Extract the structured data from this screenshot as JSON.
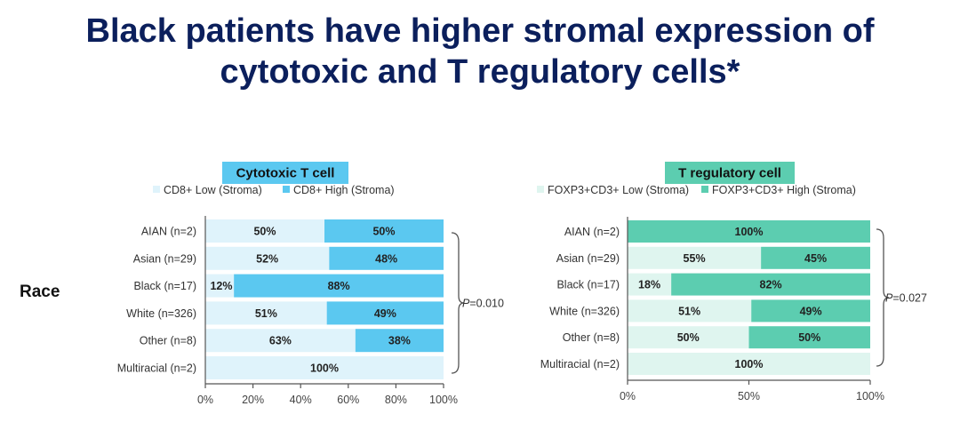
{
  "title_line1": "Black patients have higher stromal expression of",
  "title_line2": "cytotoxic and T regulatory cells*",
  "y_group_label": "Race",
  "chart_data": [
    {
      "type": "bar",
      "orientation": "horizontal-stacked",
      "title": "Cytotoxic T cell",
      "title_color": "#5bc8f0",
      "categories": [
        "AIAN (n=2)",
        "Asian (n=29)",
        "Black (n=17)",
        "White (n=326)",
        "Other (n=8)",
        "Multiracial (n=2)"
      ],
      "series": [
        {
          "name": "CD8+ Low (Stroma)",
          "color": "#dff3fb",
          "values": [
            50,
            52,
            12,
            51,
            63,
            100
          ],
          "labels": [
            "50%",
            "52%",
            "12%",
            "51%",
            "63%",
            "100%"
          ]
        },
        {
          "name": "CD8+ High (Stroma)",
          "color": "#5bc8f0",
          "values": [
            50,
            48,
            88,
            49,
            38,
            0
          ],
          "labels": [
            "50%",
            "48%",
            "88%",
            "49%",
            "38%",
            ""
          ]
        }
      ],
      "xticks": [
        "0%",
        "20%",
        "40%",
        "60%",
        "80%",
        "100%"
      ],
      "xtick_values": [
        0,
        20,
        40,
        60,
        80,
        100
      ],
      "xlim": [
        0,
        100
      ],
      "legend": "top",
      "annotation": {
        "p_prefix": "P",
        "p_value": "=0.010"
      }
    },
    {
      "type": "bar",
      "orientation": "horizontal-stacked",
      "title": "T regulatory cell",
      "title_color": "#5ccdb0",
      "categories": [
        "AIAN (n=2)",
        "Asian (n=29)",
        "Black (n=17)",
        "White (n=326)",
        "Other (n=8)",
        "Multiracial (n=2)"
      ],
      "series": [
        {
          "name": "FOXP3+CD3+ Low (Stroma)",
          "color": "#dff5ef",
          "values": [
            0,
            55,
            18,
            51,
            50,
            100
          ],
          "labels": [
            "",
            "55%",
            "18%",
            "51%",
            "50%",
            "100%"
          ]
        },
        {
          "name": "FOXP3+CD3+ High (Stroma)",
          "color": "#5ccdb0",
          "values": [
            100,
            45,
            82,
            49,
            50,
            0
          ],
          "labels": [
            "100%",
            "45%",
            "82%",
            "49%",
            "50%",
            ""
          ]
        }
      ],
      "xticks": [
        "0%",
        "50%",
        "100%"
      ],
      "xtick_values": [
        0,
        50,
        100
      ],
      "xlim": [
        0,
        100
      ],
      "legend": "top",
      "annotation": {
        "p_prefix": "P",
        "p_value": "=0.027"
      }
    }
  ]
}
